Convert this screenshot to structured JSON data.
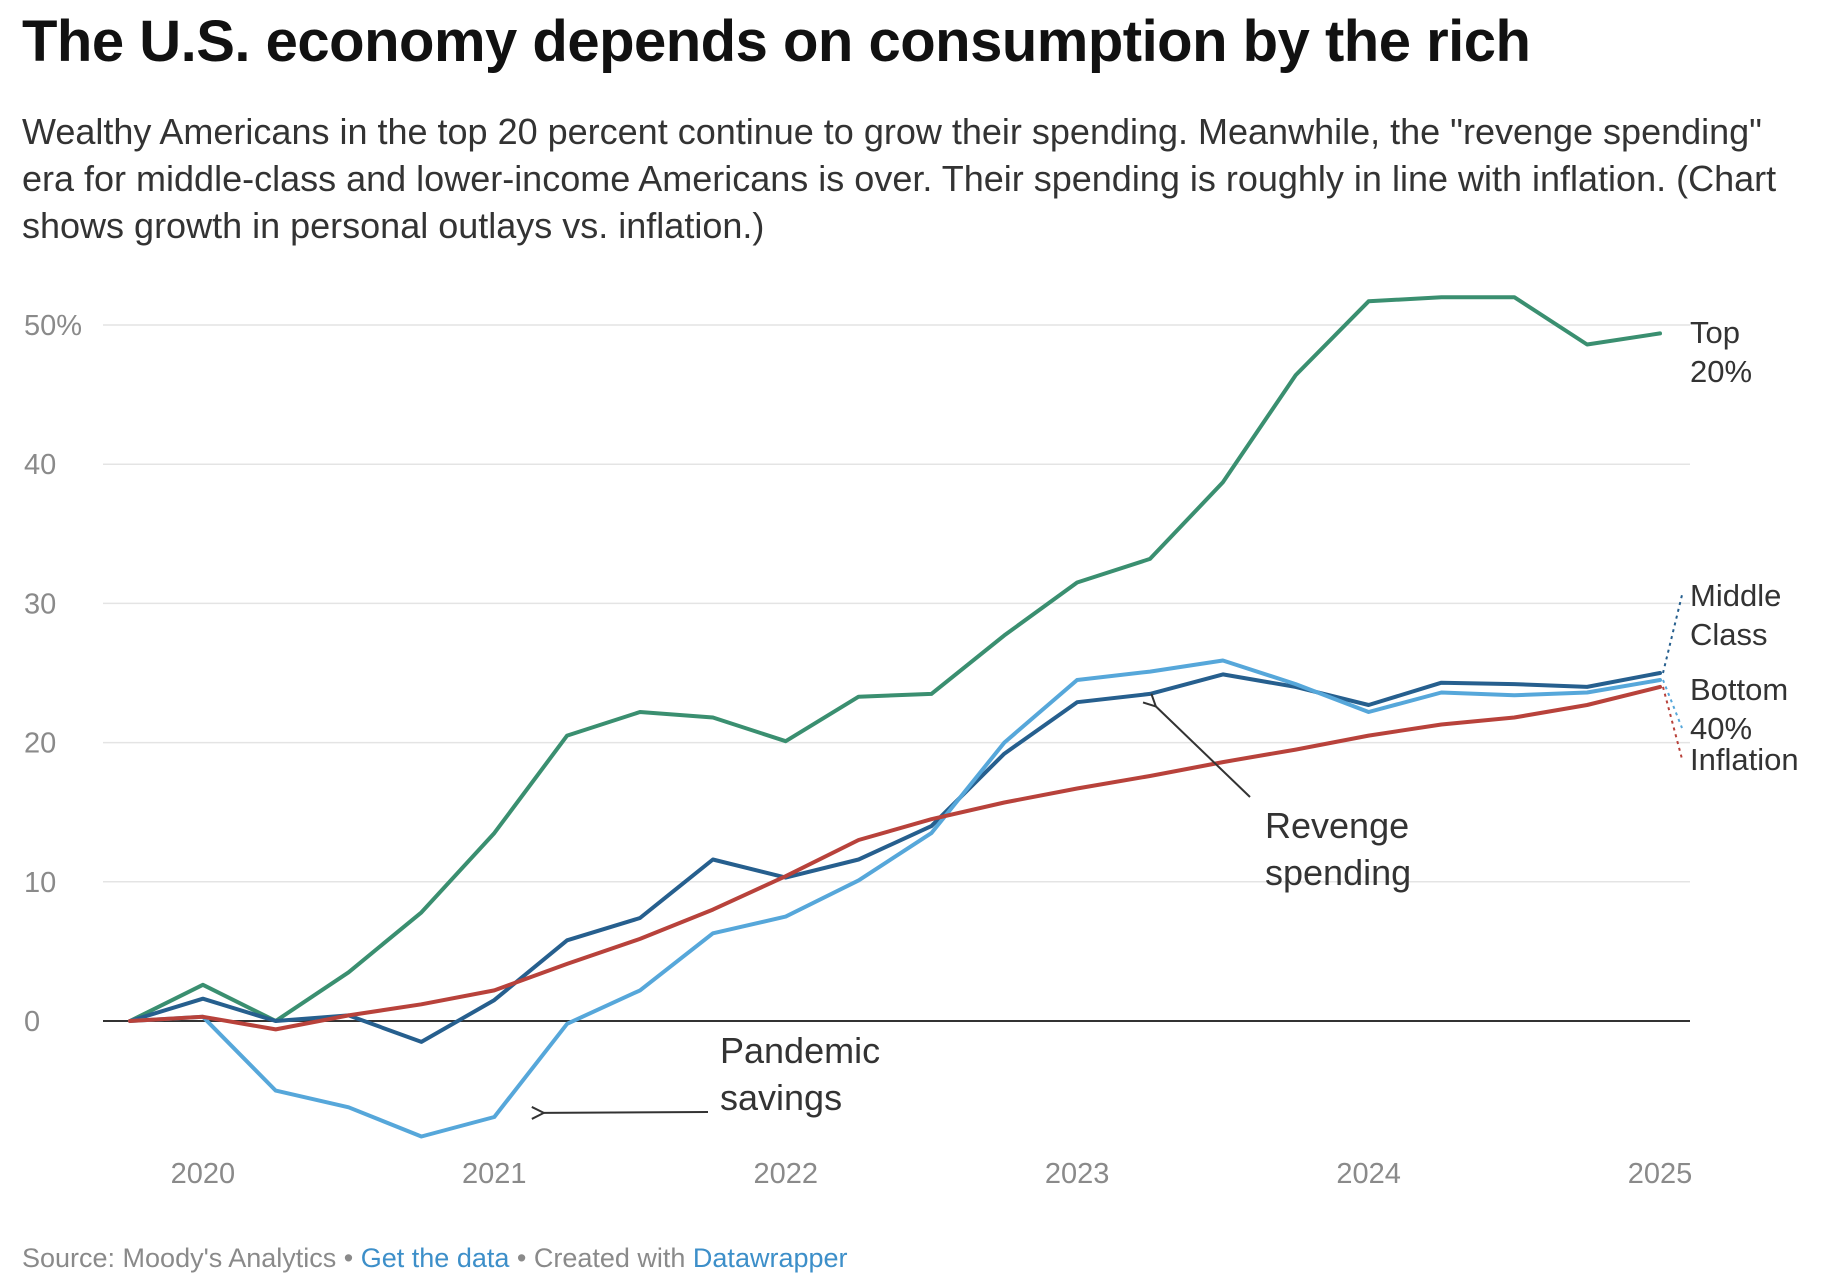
{
  "header": {
    "title": "The U.S. economy depends on consumption by the rich",
    "subtitle": "Wealthy Americans in the top 20 percent continue to grow their spending. Meanwhile, the \"revenge spending\" era for middle-class and lower-income Americans is over. Their spending is roughly in line with inflation. (Chart shows growth in personal outlays vs. inflation.)"
  },
  "footer": {
    "source": "Source: Moody's Analytics",
    "sep1": " • ",
    "get_data": "Get the data",
    "sep2": " • ",
    "created_with": "Created with ",
    "datawrapper": "Datawrapper"
  },
  "chart_data": {
    "type": "line",
    "title": "The U.S. economy depends on consumption by the rich",
    "x_tick_labels": [
      "2020",
      "2021",
      "2022",
      "2023",
      "2024",
      "2025"
    ],
    "y_tick_labels": [
      "50%",
      "40",
      "30",
      "20",
      "10",
      "0"
    ],
    "y_ticks": [
      50,
      40,
      30,
      20,
      10,
      0
    ],
    "ylim": [
      -10,
      55
    ],
    "xlim": [
      2019.75,
      2025.1
    ],
    "grid": true,
    "x": [
      2019.75,
      2020.0,
      2020.25,
      2020.5,
      2020.75,
      2021.0,
      2021.25,
      2021.5,
      2021.75,
      2022.0,
      2022.25,
      2022.5,
      2022.75,
      2023.0,
      2023.25,
      2023.5,
      2023.75,
      2024.0,
      2024.25,
      2024.5,
      2024.75,
      2025.0
    ],
    "series": [
      {
        "name": "Top 20%",
        "color": "#3a8f70",
        "label_lines": [
          "Top",
          "20%"
        ],
        "values": [
          0,
          2.6,
          0,
          3.5,
          7.8,
          13.5,
          20.5,
          22.2,
          21.8,
          20.1,
          23.3,
          23.5,
          27.7,
          31.5,
          33.2,
          38.7,
          46.4,
          51.7,
          52.0,
          52.0,
          48.6,
          49.4
        ]
      },
      {
        "name": "Middle Class",
        "color": "#265f8e",
        "label_lines": [
          "Middle",
          "Class"
        ],
        "values": [
          0,
          1.6,
          0,
          0.4,
          -1.5,
          1.5,
          5.8,
          7.4,
          11.6,
          10.3,
          11.6,
          14.0,
          19.2,
          22.9,
          23.5,
          24.9,
          24.0,
          22.7,
          24.3,
          24.2,
          24.0,
          25.0
        ]
      },
      {
        "name": "Bottom 40%",
        "color": "#56a7da",
        "label_lines": [
          "Bottom",
          "40%"
        ],
        "values": [
          0,
          0.3,
          -5.0,
          -6.2,
          -8.3,
          -6.9,
          -0.2,
          2.2,
          6.3,
          7.5,
          10.1,
          13.5,
          20.0,
          24.5,
          25.1,
          25.9,
          24.2,
          22.2,
          23.6,
          23.4,
          23.6,
          24.5
        ]
      },
      {
        "name": "Inflation",
        "color": "#b8423b",
        "label_lines": [
          "Inflation"
        ],
        "values": [
          0,
          0.3,
          -0.6,
          0.4,
          1.2,
          2.2,
          4.1,
          5.9,
          8.0,
          10.4,
          13.0,
          14.5,
          15.7,
          16.7,
          17.6,
          18.6,
          19.5,
          20.5,
          21.3,
          21.8,
          22.7,
          24.0
        ]
      }
    ],
    "annotations": [
      {
        "text_lines": [
          "Revenge",
          "spending"
        ],
        "target_x": 2023.27,
        "target_y": 22.6
      },
      {
        "text_lines": [
          "Pandemic",
          "savings"
        ],
        "target_x": 2021.17,
        "target_y": -6.6
      }
    ]
  }
}
